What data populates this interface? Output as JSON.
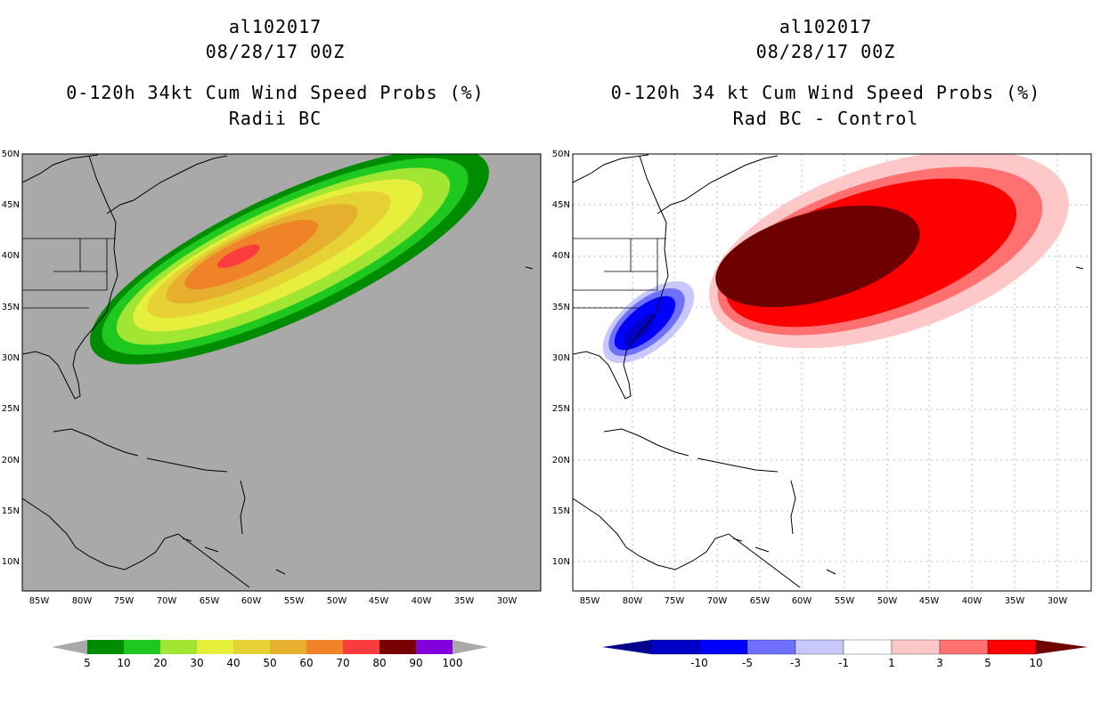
{
  "panels": [
    {
      "storm_id": "al102017",
      "datetime": "08/28/17 00Z",
      "product": "0-120h 34kt Cum Wind Speed Probs (%)",
      "subtitle": "Radii BC",
      "colorbar": {
        "labels": [
          "5",
          "10",
          "20",
          "30",
          "40",
          "50",
          "60",
          "70",
          "80",
          "90",
          "100"
        ],
        "colors": [
          "#008c00",
          "#1ec81e",
          "#a0e632",
          "#e6f03c",
          "#e6d234",
          "#e6af2d",
          "#f08228",
          "#fa3c3c",
          "#780000",
          "#8200dc"
        ],
        "end_color": "#a9a9a9"
      }
    },
    {
      "storm_id": "al102017",
      "datetime": "08/28/17 00Z",
      "product": "0-120h 34 kt Cum Wind Speed Probs (%)",
      "subtitle": "Rad BC - Control",
      "colorbar": {
        "labels": [
          "-10",
          "-5",
          "-3",
          "-1",
          "1",
          "3",
          "5",
          "10"
        ],
        "colors": [
          "#0000c8",
          "#0000ff",
          "#7070ff",
          "#c8c8ff",
          "#ffffff",
          "#ffc8c8",
          "#ff7070",
          "#ff0000"
        ],
        "low_end_color": "#00008c",
        "high_end_color": "#6e0000"
      }
    }
  ],
  "map": {
    "lat_labels": [
      "50N",
      "45N",
      "40N",
      "35N",
      "30N",
      "25N",
      "20N",
      "15N",
      "10N"
    ],
    "lon_labels": [
      "85W",
      "80W",
      "75W",
      "70W",
      "65W",
      "60W",
      "55W",
      "50W",
      "45W",
      "40W",
      "35W",
      "30W"
    ],
    "left_background": "#a9a9a9",
    "right_background": "#ffffff"
  }
}
